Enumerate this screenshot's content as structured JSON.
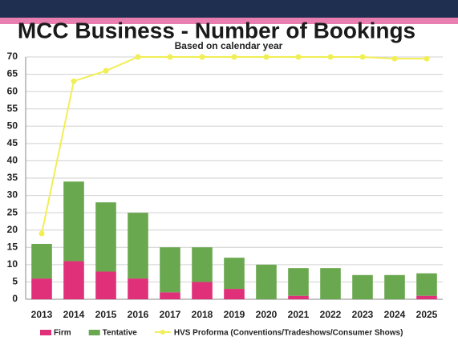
{
  "chart_data": {
    "type": "stacked-bar-line",
    "title": "MCC Business - Number of Bookings",
    "subtitle": "Based on calendar year",
    "categories": [
      "2013",
      "2014",
      "2015",
      "2016",
      "2017",
      "2018",
      "2019",
      "2020",
      "2021",
      "2022",
      "2023",
      "2024",
      "2025"
    ],
    "series": [
      {
        "name": "Firm",
        "color": "#e0307a",
        "type": "bar",
        "values": [
          6,
          11,
          8,
          6,
          2,
          5,
          3,
          0,
          1,
          0,
          0,
          0,
          1
        ]
      },
      {
        "name": "Tentative",
        "color": "#6aa84f",
        "type": "bar",
        "values": [
          10,
          23,
          20,
          19,
          13,
          10,
          9,
          10,
          8,
          9,
          7,
          7,
          6.5
        ]
      },
      {
        "name": "HVS Proforma (Conventions/Tradeshows/Consumer Shows)",
        "color": "#f2ee55",
        "type": "line",
        "values": [
          19,
          63,
          66,
          70,
          70,
          70,
          70,
          70,
          70,
          70,
          70,
          69.5,
          69.5
        ]
      }
    ],
    "ylim": [
      0,
      70
    ],
    "yticks": [
      0,
      5,
      10,
      15,
      20,
      25,
      30,
      35,
      40,
      45,
      50,
      55,
      60,
      65,
      70
    ],
    "grid": true
  }
}
